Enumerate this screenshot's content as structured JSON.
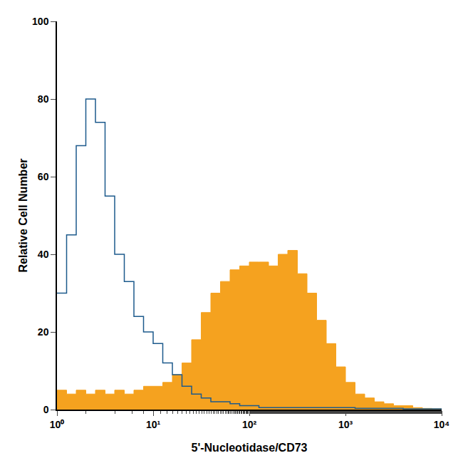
{
  "chart_data": {
    "type": "line",
    "x_label": "5'-Nucleotidase/CD73",
    "y_label": "Relative Cell Number",
    "log": "x",
    "grid": false,
    "xlim": [
      1,
      10000
    ],
    "xticks": [
      {
        "value": 1,
        "label": "10⁰"
      },
      {
        "value": 10,
        "label": "10¹"
      },
      {
        "value": 100,
        "label": "10²"
      },
      {
        "value": 1000,
        "label": "10³"
      },
      {
        "value": 10000,
        "label": "10⁴"
      }
    ],
    "ylim": [
      0,
      100
    ],
    "yticks": [
      0,
      20,
      40,
      60,
      80,
      100
    ],
    "x": [
      1,
      1.259,
      1.585,
      1.995,
      2.512,
      3.162,
      3.981,
      5.012,
      6.31,
      7.943,
      10,
      12.59,
      15.85,
      19.95,
      25.12,
      31.62,
      39.81,
      50.12,
      63.1,
      79.43,
      100,
      125.9,
      158.5,
      199.5,
      251.2,
      316.2,
      398.1,
      501.2,
      631,
      794.3,
      1000,
      1259,
      1585,
      1995,
      2512,
      3162,
      3981,
      5012,
      6310,
      7943,
      10000
    ],
    "series": [
      {
        "type": "area",
        "color": "#f5a21f",
        "values": [
          5,
          4,
          5,
          4,
          5,
          4,
          5,
          4,
          5,
          6,
          6,
          7,
          9,
          12,
          18,
          25,
          30,
          33,
          36,
          37,
          38,
          38,
          37,
          40,
          41,
          35,
          30,
          23,
          17,
          11,
          7,
          4,
          3,
          2,
          1.5,
          1,
          1,
          0.5,
          0.3,
          0.2,
          0
        ]
      },
      {
        "type": "line",
        "color": "#1c5a8c",
        "values": [
          30,
          45,
          68,
          80,
          74,
          55,
          40,
          33,
          24,
          20,
          17,
          12,
          9,
          6,
          4,
          3,
          2,
          2,
          1.5,
          1,
          1,
          0.5,
          0.5,
          0.5,
          0.5,
          0.5,
          0.5,
          0.5,
          0.5,
          0.5,
          0.5,
          0.3,
          0.3,
          0.3,
          0.3,
          0.3,
          0.2,
          0.2,
          0.2,
          0.2,
          0
        ]
      }
    ]
  }
}
